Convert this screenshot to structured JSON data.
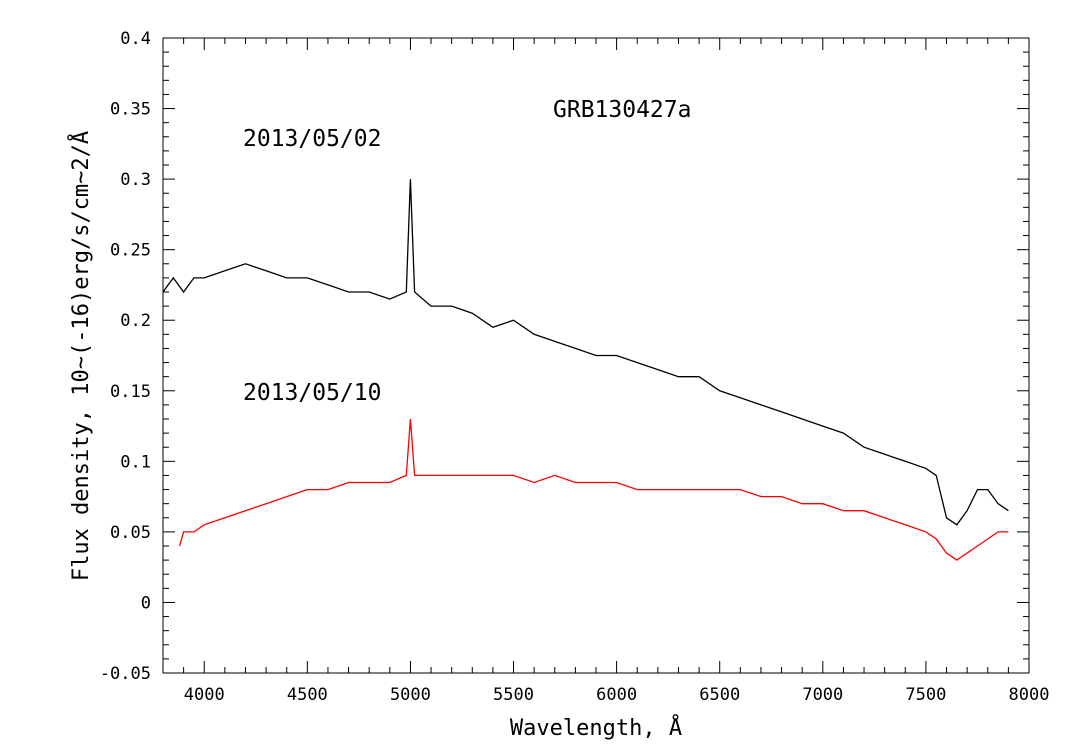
{
  "chart_data": {
    "type": "line",
    "title": "GRB130427a",
    "xlabel": "Wavelength, Å",
    "ylabel": "Flux density, 10~(-16)erg/s/cm~2/Å",
    "xlim": [
      3800,
      8000
    ],
    "ylim": [
      -0.05,
      0.4
    ],
    "x_ticks": [
      4000,
      4500,
      5000,
      5500,
      6000,
      6500,
      7000,
      7500,
      8000
    ],
    "y_ticks": [
      -0.05,
      0,
      0.05,
      0.1,
      0.15,
      0.2,
      0.25,
      0.3,
      0.35,
      0.4
    ],
    "x_tick_labels": [
      "4000",
      "4500",
      "5000",
      "5500",
      "6000",
      "6500",
      "7000",
      "7500",
      "8000"
    ],
    "y_tick_labels": [
      "-0.05",
      "0",
      "0.05",
      "0.1",
      "0.15",
      "0.2",
      "0.25",
      "0.3",
      "0.35",
      "0.4"
    ],
    "grid": false,
    "annotations": [
      {
        "text": "2013/05/02",
        "x": 4180,
        "y": 0.325
      },
      {
        "text": "2013/05/10",
        "x": 4180,
        "y": 0.145
      }
    ],
    "series": [
      {
        "color": "#000000",
        "x": [
          3800,
          3850,
          3900,
          3950,
          4000,
          4100,
          4200,
          4300,
          4400,
          4500,
          4600,
          4700,
          4800,
          4900,
          4980,
          5000,
          5020,
          5100,
          5200,
          5300,
          5400,
          5500,
          5600,
          5700,
          5800,
          5900,
          6000,
          6100,
          6200,
          6300,
          6400,
          6500,
          6600,
          6700,
          6800,
          6900,
          7000,
          7100,
          7200,
          7300,
          7400,
          7500,
          7550,
          7600,
          7650,
          7700,
          7750,
          7800,
          7850,
          7900
        ],
        "y": [
          0.22,
          0.23,
          0.22,
          0.23,
          0.23,
          0.235,
          0.24,
          0.235,
          0.23,
          0.23,
          0.225,
          0.22,
          0.22,
          0.215,
          0.22,
          0.3,
          0.22,
          0.21,
          0.21,
          0.205,
          0.195,
          0.2,
          0.19,
          0.185,
          0.18,
          0.175,
          0.175,
          0.17,
          0.165,
          0.16,
          0.16,
          0.15,
          0.145,
          0.14,
          0.135,
          0.13,
          0.125,
          0.12,
          0.11,
          0.105,
          0.1,
          0.095,
          0.09,
          0.06,
          0.055,
          0.065,
          0.08,
          0.08,
          0.07,
          0.065
        ]
      },
      {
        "color": "#ff0000",
        "x": [
          3880,
          3900,
          3950,
          4000,
          4100,
          4200,
          4300,
          4400,
          4500,
          4600,
          4700,
          4800,
          4900,
          4980,
          5000,
          5020,
          5100,
          5200,
          5300,
          5400,
          5500,
          5600,
          5700,
          5800,
          5900,
          6000,
          6100,
          6200,
          6300,
          6400,
          6500,
          6600,
          6700,
          6800,
          6900,
          7000,
          7100,
          7200,
          7300,
          7400,
          7500,
          7550,
          7600,
          7650,
          7700,
          7750,
          7800,
          7850,
          7900
        ],
        "y": [
          0.04,
          0.05,
          0.05,
          0.055,
          0.06,
          0.065,
          0.07,
          0.075,
          0.08,
          0.08,
          0.085,
          0.085,
          0.085,
          0.09,
          0.13,
          0.09,
          0.09,
          0.09,
          0.09,
          0.09,
          0.09,
          0.085,
          0.09,
          0.085,
          0.085,
          0.085,
          0.08,
          0.08,
          0.08,
          0.08,
          0.08,
          0.08,
          0.075,
          0.075,
          0.07,
          0.07,
          0.065,
          0.065,
          0.06,
          0.055,
          0.05,
          0.045,
          0.035,
          0.03,
          0.035,
          0.04,
          0.045,
          0.05,
          0.05
        ]
      }
    ]
  }
}
